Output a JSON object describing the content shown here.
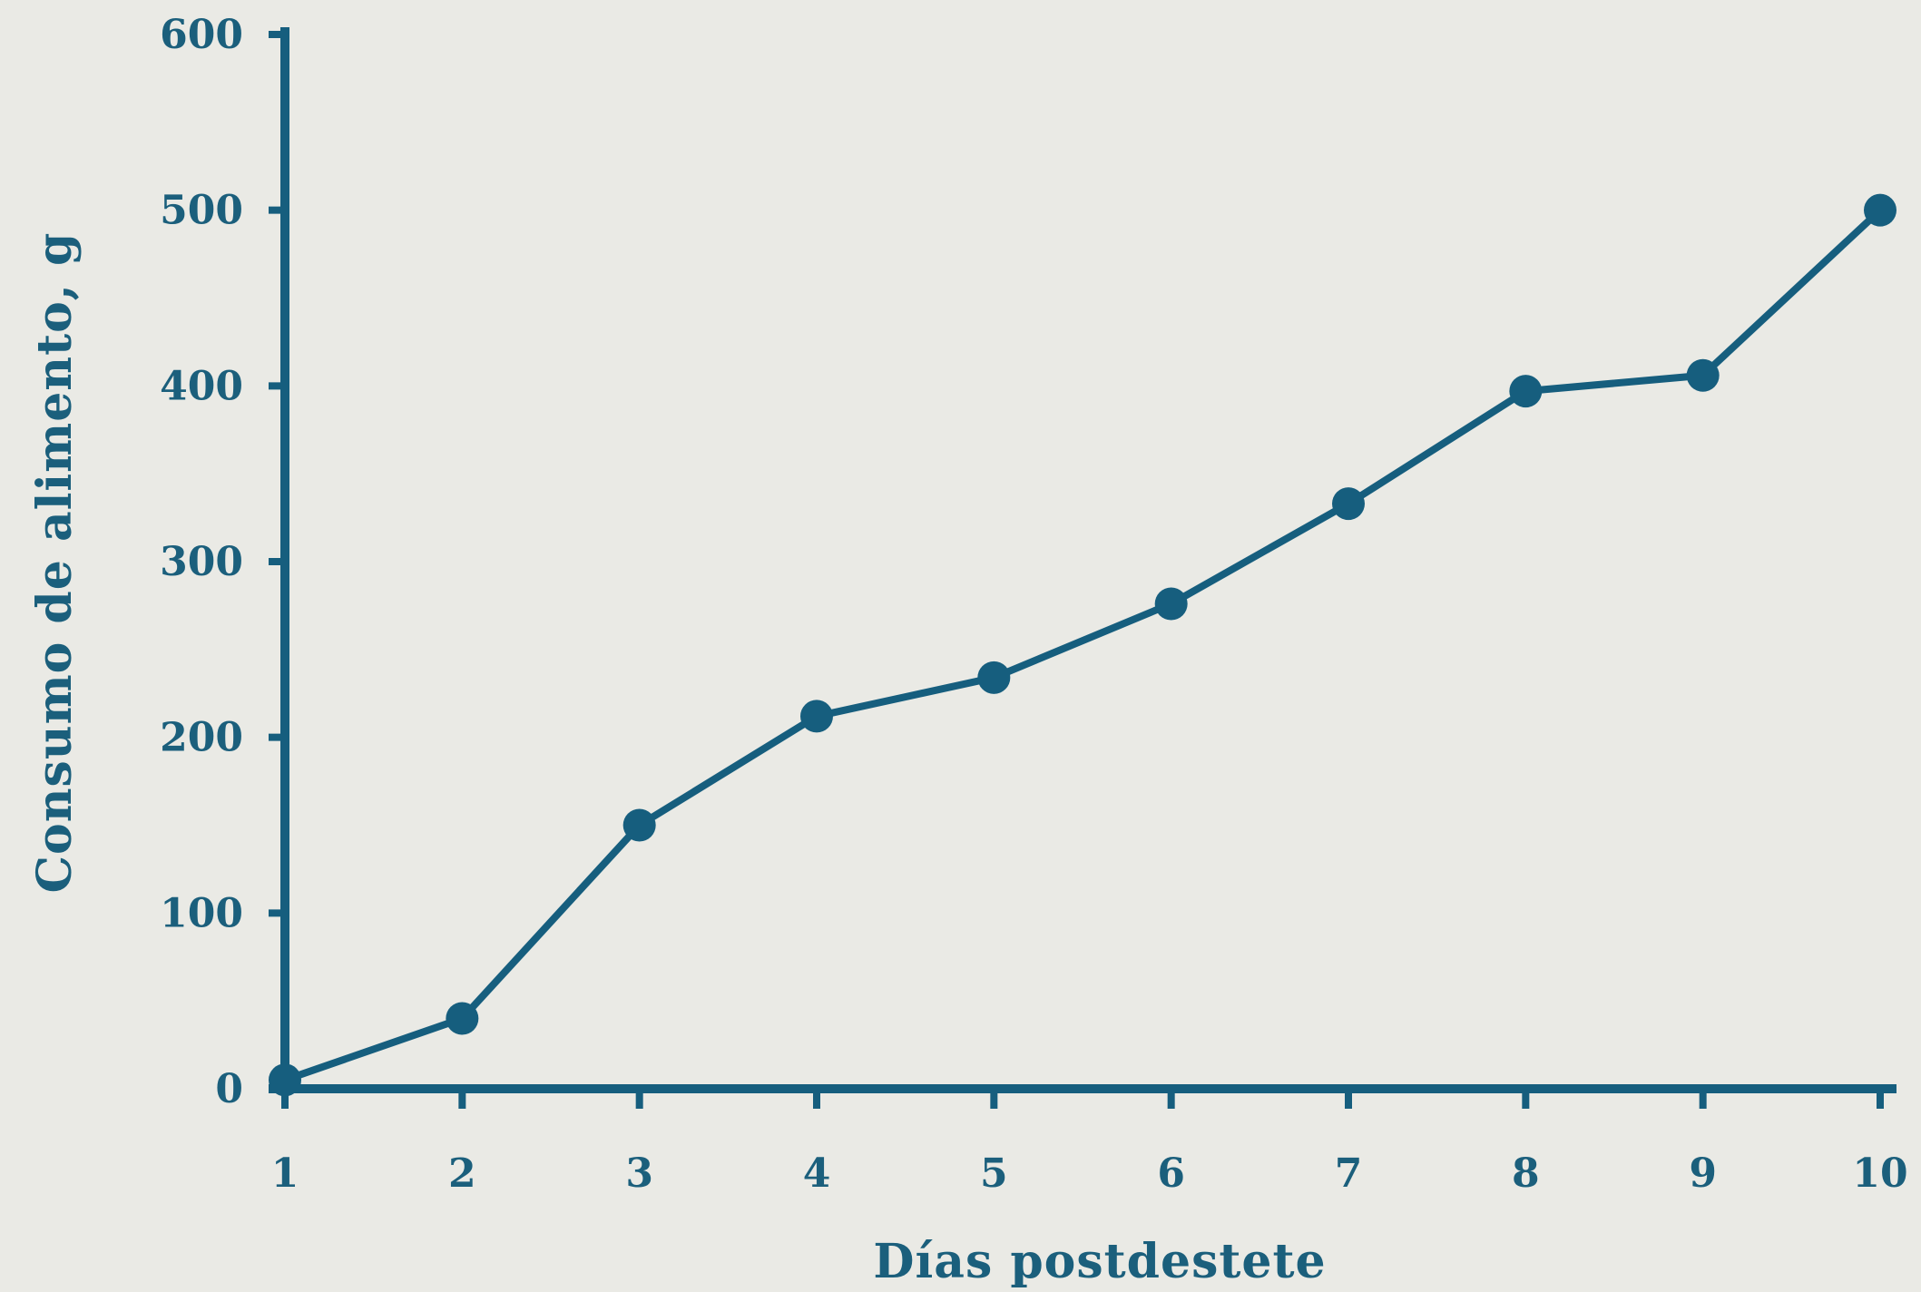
{
  "chart_data": {
    "type": "line",
    "title": "",
    "xlabel": "Días postdestete",
    "ylabel": "Consumo de alimento, g",
    "x": [
      1,
      2,
      3,
      4,
      5,
      6,
      7,
      8,
      9,
      10
    ],
    "x_tick_labels": [
      "1",
      "2",
      "3",
      "4",
      "5",
      "6",
      "7",
      "8",
      "9",
      "10"
    ],
    "y_tick_labels": [
      "0",
      "100",
      "200",
      "300",
      "400",
      "500",
      "600"
    ],
    "series": [
      {
        "values": [
          5,
          40,
          150,
          212,
          234,
          276,
          333,
          397,
          406,
          500
        ]
      }
    ],
    "xlim": [
      1,
      10
    ],
    "ylim": [
      0,
      600
    ],
    "y_ticks": [
      0,
      100,
      200,
      300,
      400,
      500,
      600
    ],
    "grid": false,
    "legend": "none",
    "colors": {
      "line": "#165e7e",
      "axis": "#165e7e",
      "text": "#1b5f7c",
      "background": "#eaeae5"
    }
  }
}
